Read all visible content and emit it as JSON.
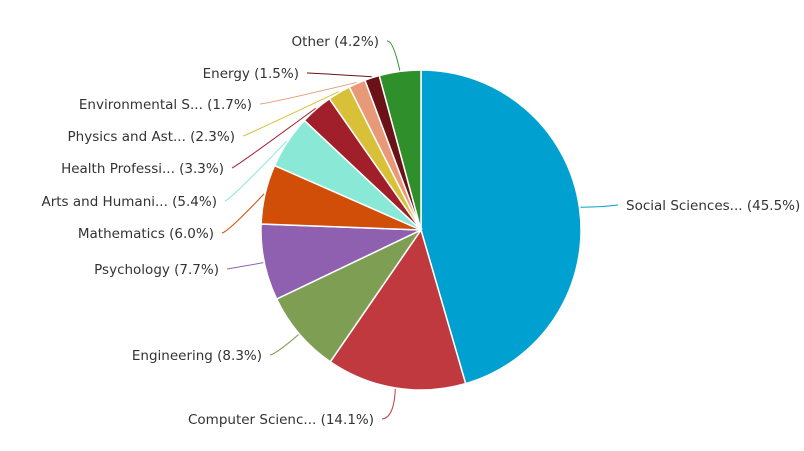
{
  "chart_data": {
    "type": "pie",
    "title": "",
    "unit": "%",
    "legend": "none",
    "slices": [
      {
        "label": "Social Sciences...",
        "value": 45.5,
        "display": "Social Sciences... (45.5%)",
        "color": "#00a0d0"
      },
      {
        "label": "Computer Scienc...",
        "value": 14.1,
        "display": "Computer Scienc... (14.1%)",
        "color": "#c0393f"
      },
      {
        "label": "Engineering",
        "value": 8.3,
        "display": "Engineering (8.3%)",
        "color": "#7e9e53"
      },
      {
        "label": "Psychology",
        "value": 7.7,
        "display": "Psychology (7.7%)",
        "color": "#9060b0"
      },
      {
        "label": "Mathematics",
        "value": 6.0,
        "display": "Mathematics (6.0%)",
        "color": "#d04e08"
      },
      {
        "label": "Arts and Humani...",
        "value": 5.4,
        "display": "Arts and Humani... (5.4%)",
        "color": "#8ae8d6"
      },
      {
        "label": "Health Professi...",
        "value": 3.3,
        "display": "Health Professi... (3.3%)",
        "color": "#a11f2b"
      },
      {
        "label": "Physics and Ast...",
        "value": 2.3,
        "display": "Physics and Ast... (2.3%)",
        "color": "#d8c038"
      },
      {
        "label": "Environmental S...",
        "value": 1.7,
        "display": "Environmental S... (1.7%)",
        "color": "#e89a78"
      },
      {
        "label": "Energy",
        "value": 1.5,
        "display": "Energy (1.5%)",
        "color": "#6a1218"
      },
      {
        "label": "Other",
        "value": 4.2,
        "display": "Other (4.2%)",
        "color": "#2f8f2a"
      }
    ]
  }
}
